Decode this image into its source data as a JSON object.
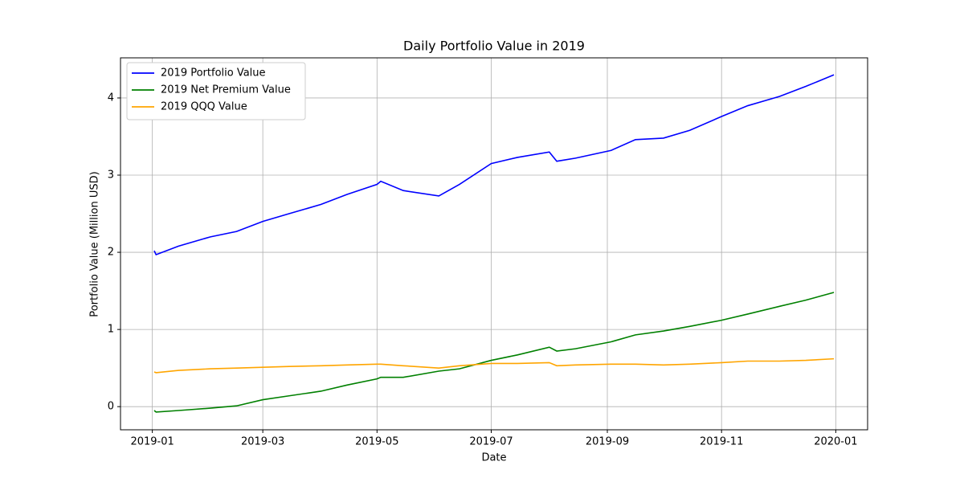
{
  "chart_data": {
    "type": "line",
    "title": "Daily Portfolio Value in 2019",
    "xlabel": "Date",
    "ylabel": "Portfolio Value (Million USD)",
    "x": [
      "2019-01-02",
      "2019-01-03",
      "2019-01-15",
      "2019-02-01",
      "2019-02-15",
      "2019-03-01",
      "2019-03-15",
      "2019-04-01",
      "2019-04-15",
      "2019-05-01",
      "2019-05-03",
      "2019-05-15",
      "2019-06-03",
      "2019-06-14",
      "2019-07-01",
      "2019-07-15",
      "2019-08-01",
      "2019-08-05",
      "2019-08-15",
      "2019-09-03",
      "2019-09-16",
      "2019-10-01",
      "2019-10-15",
      "2019-11-01",
      "2019-11-15",
      "2019-12-02",
      "2019-12-16",
      "2019-12-31"
    ],
    "series": [
      {
        "name": "2019 Portfolio Value",
        "color": "#0000ff",
        "values": [
          2.02,
          1.97,
          2.08,
          2.2,
          2.27,
          2.4,
          2.5,
          2.62,
          2.75,
          2.88,
          2.92,
          2.8,
          2.73,
          2.88,
          3.15,
          3.23,
          3.3,
          3.18,
          3.22,
          3.32,
          3.46,
          3.48,
          3.58,
          3.76,
          3.9,
          4.02,
          4.15,
          4.3
        ]
      },
      {
        "name": "2019 Net Premium Value",
        "color": "#008000",
        "values": [
          -0.05,
          -0.07,
          -0.05,
          -0.02,
          0.01,
          0.09,
          0.14,
          0.2,
          0.28,
          0.36,
          0.38,
          0.38,
          0.46,
          0.49,
          0.6,
          0.67,
          0.77,
          0.72,
          0.75,
          0.84,
          0.93,
          0.98,
          1.04,
          1.12,
          1.2,
          1.3,
          1.38,
          1.48
        ]
      },
      {
        "name": "2019 QQQ Value",
        "color": "#ffa500",
        "values": [
          0.45,
          0.44,
          0.47,
          0.49,
          0.5,
          0.51,
          0.52,
          0.53,
          0.54,
          0.55,
          0.55,
          0.53,
          0.5,
          0.53,
          0.56,
          0.56,
          0.57,
          0.53,
          0.54,
          0.55,
          0.55,
          0.54,
          0.55,
          0.57,
          0.59,
          0.59,
          0.6,
          0.62
        ]
      }
    ],
    "xlim": [
      "2018-12-15",
      "2020-01-18"
    ],
    "xticks": [
      {
        "value": "2019-01-01",
        "label": "2019-01"
      },
      {
        "value": "2019-03-01",
        "label": "2019-03"
      },
      {
        "value": "2019-05-01",
        "label": "2019-05"
      },
      {
        "value": "2019-07-01",
        "label": "2019-07"
      },
      {
        "value": "2019-09-01",
        "label": "2019-09"
      },
      {
        "value": "2019-11-01",
        "label": "2019-11"
      },
      {
        "value": "2020-01-01",
        "label": "2020-01"
      }
    ],
    "ylim": [
      -0.3,
      4.52
    ],
    "yticks": [
      0,
      1,
      2,
      3,
      4
    ],
    "grid": true,
    "legend": "upper left"
  }
}
